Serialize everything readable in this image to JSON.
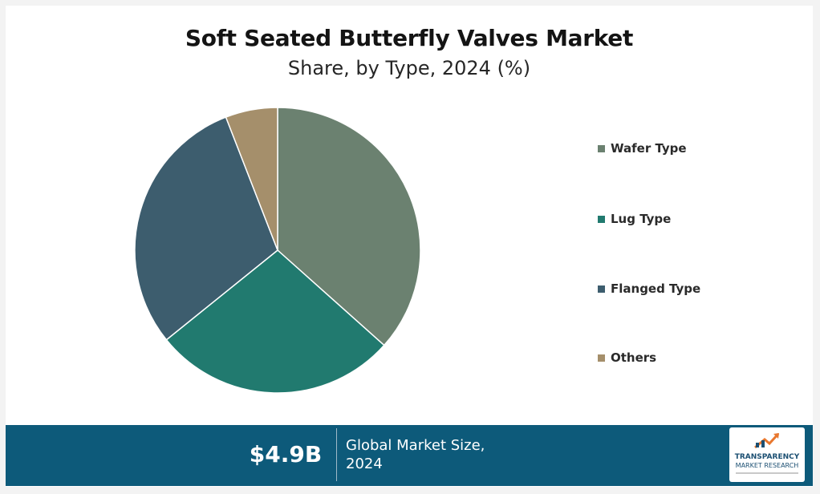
{
  "chart_data": {
    "type": "pie",
    "title": "Soft Seated Butterfly Valves Market",
    "subtitle": "Share, by Type, 2024 (%)",
    "categories": [
      "Wafer Type",
      "Lug Type",
      "Flanged Type",
      "Others"
    ],
    "values": [
      36.6,
      27.6,
      29.9,
      5.9
    ],
    "colors": [
      "#6b8170",
      "#217a6f",
      "#3d5d6e",
      "#a58f6b"
    ],
    "legend": "right"
  },
  "footer": {
    "value": "$4.9B",
    "caption_line1": "Global Market Size,",
    "caption_line2": "2024",
    "background": "#0d5a7a"
  },
  "logo": {
    "line1": "TRANSPARENCY",
    "line2": "MARKET RESEARCH"
  }
}
